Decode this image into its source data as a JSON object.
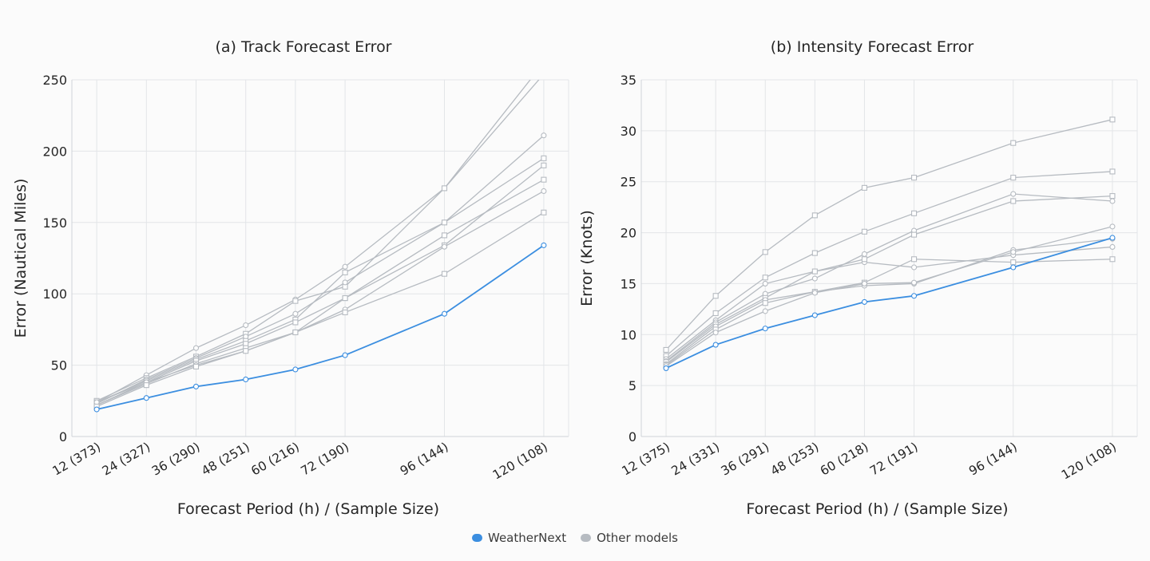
{
  "colors": {
    "weathernext": "#3b8ee0",
    "other": "#b6bbc1",
    "grid": "#e3e5e8",
    "axis": "#cfd3d8"
  },
  "legend": {
    "weathernext": "WeatherNext",
    "other": "Other models"
  },
  "chart_data": [
    {
      "type": "line",
      "title": "(a) Track Forecast Error",
      "xlabel": "Forecast Period (h) / (Sample Size)",
      "ylabel": "Error (Nautical Miles)",
      "x": [
        12,
        24,
        36,
        48,
        60,
        72,
        96,
        120
      ],
      "xlim": [
        6,
        126
      ],
      "tick_labels": [
        "12 (373)",
        "24 (327)",
        "36 (290)",
        "48 (251)",
        "60 (216)",
        "72 (190)",
        "96 (144)",
        "120 (108)"
      ],
      "ylim": [
        0,
        250
      ],
      "yticks": [
        0,
        50,
        100,
        150,
        200,
        250
      ],
      "grid": true,
      "legend_position": "bottom-center",
      "series": [
        {
          "name": "WeatherNext",
          "marker": "circle",
          "values": [
            19,
            27,
            35,
            40,
            47,
            57,
            86,
            134
          ]
        },
        {
          "marker": "circle",
          "values": [
            24,
            43,
            62,
            78,
            96,
            119,
            174,
            262
          ]
        },
        {
          "marker": "square",
          "values": [
            25,
            41,
            56,
            72,
            95,
            105,
            174,
            254
          ]
        },
        {
          "marker": "circle",
          "values": [
            23,
            40,
            55,
            70,
            86,
            108,
            150,
            211
          ]
        },
        {
          "marker": "square",
          "values": [
            24,
            39,
            54,
            67,
            82,
            115,
            150,
            195
          ]
        },
        {
          "marker": "square",
          "values": [
            22,
            38,
            53,
            65,
            80,
            97,
            134,
            190
          ]
        },
        {
          "marker": "square",
          "values": [
            22,
            37,
            51,
            62,
            73,
            97,
            141,
            180
          ]
        },
        {
          "marker": "circle",
          "values": [
            24,
            38,
            50,
            60,
            73,
            89,
            133,
            172
          ]
        },
        {
          "marker": "square",
          "values": [
            21,
            36,
            49,
            60,
            73,
            87,
            114,
            157
          ]
        }
      ]
    },
    {
      "type": "line",
      "title": "(b) Intensity Forecast Error",
      "xlabel": "Forecast Period (h) / (Sample Size)",
      "ylabel": "Error (Knots)",
      "x": [
        12,
        24,
        36,
        48,
        60,
        72,
        96,
        120
      ],
      "xlim": [
        6,
        126
      ],
      "tick_labels": [
        "12 (375)",
        "24 (331)",
        "36 (291)",
        "48 (253)",
        "60 (218)",
        "72 (191)",
        "96 (144)",
        "120 (108)"
      ],
      "ylim": [
        0,
        35
      ],
      "yticks": [
        0,
        5,
        10,
        15,
        20,
        25,
        30,
        35
      ],
      "grid": true,
      "legend_position": "bottom-center",
      "series": [
        {
          "name": "WeatherNext",
          "marker": "circle",
          "values": [
            6.7,
            9.0,
            10.6,
            11.9,
            13.2,
            13.8,
            16.6,
            19.5
          ]
        },
        {
          "marker": "square",
          "values": [
            8.5,
            13.8,
            18.1,
            21.7,
            24.4,
            25.4,
            28.8,
            31.1
          ]
        },
        {
          "marker": "square",
          "values": [
            7.9,
            12.1,
            15.6,
            18.0,
            20.1,
            21.9,
            25.4,
            26.0
          ]
        },
        {
          "marker": "circle",
          "values": [
            7.6,
            11.4,
            15.0,
            16.2,
            17.1,
            16.6,
            17.8,
            18.6
          ]
        },
        {
          "marker": "circle",
          "values": [
            7.4,
            11.2,
            14.0,
            15.5,
            17.9,
            20.2,
            23.8,
            23.1
          ]
        },
        {
          "marker": "square",
          "values": [
            7.3,
            11.0,
            13.6,
            16.2,
            17.4,
            19.8,
            23.1,
            23.6
          ]
        },
        {
          "marker": "circle",
          "values": [
            7.1,
            10.8,
            13.4,
            14.2,
            14.8,
            15.0,
            18.3,
            19.4
          ]
        },
        {
          "marker": "square",
          "values": [
            7.0,
            10.5,
            13.1,
            14.2,
            15.1,
            17.4,
            17.1,
            17.4
          ]
        },
        {
          "marker": "circle",
          "values": [
            6.9,
            10.2,
            12.3,
            14.1,
            15.0,
            15.1,
            18.1,
            20.6
          ]
        }
      ]
    }
  ]
}
